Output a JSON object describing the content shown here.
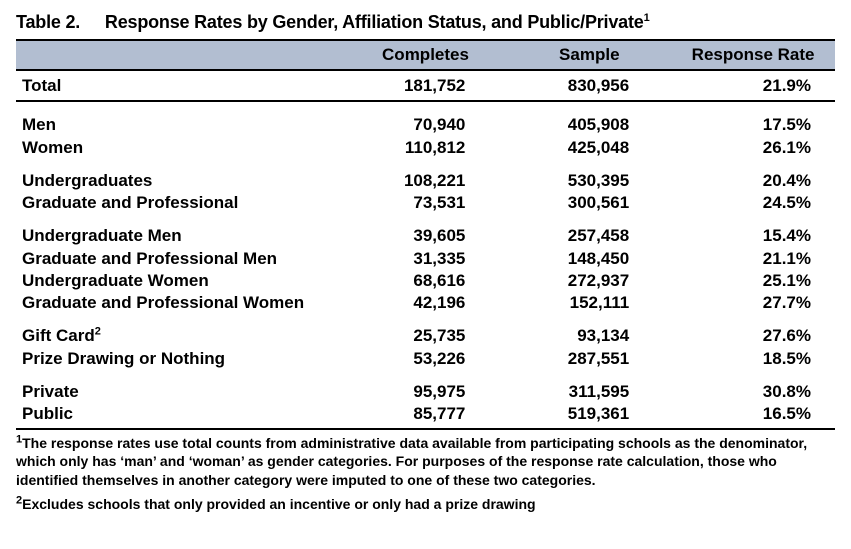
{
  "title_prefix": "Table 2.",
  "title_text": "Response Rates by Gender, Affiliation Status, and Public/Private",
  "title_sup": "1",
  "columns": [
    "",
    "Completes",
    "Sample",
    "Response Rate"
  ],
  "column_styles": {
    "header_bg": "#b2bed1",
    "border_color": "#000000",
    "font_family": "Arial",
    "header_fontsize_pt": 13,
    "body_fontsize_pt": 13,
    "footnote_fontsize_pt": 10.5
  },
  "groups": [
    {
      "kind": "total",
      "rows": [
        {
          "label": "Total",
          "completes": "181,752",
          "sample": "830,956",
          "rate": "21.9%"
        }
      ]
    },
    {
      "kind": "group",
      "rows": [
        {
          "label": "Men",
          "completes": "70,940",
          "sample": "405,908",
          "rate": "17.5%"
        },
        {
          "label": "Women",
          "completes": "110,812",
          "sample": "425,048",
          "rate": "26.1%"
        }
      ]
    },
    {
      "kind": "group",
      "rows": [
        {
          "label": "Undergraduates",
          "completes": "108,221",
          "sample": "530,395",
          "rate": "20.4%"
        },
        {
          "label": "Graduate and Professional",
          "completes": "73,531",
          "sample": "300,561",
          "rate": "24.5%"
        }
      ]
    },
    {
      "kind": "group",
      "rows": [
        {
          "label": "Undergraduate Men",
          "completes": "39,605",
          "sample": "257,458",
          "rate": "15.4%"
        },
        {
          "label": "Graduate and Professional Men",
          "completes": "31,335",
          "sample": "148,450",
          "rate": "21.1%"
        },
        {
          "label": "Undergraduate Women",
          "completes": "68,616",
          "sample": "272,937",
          "rate": "25.1%"
        },
        {
          "label": "Graduate and Professional Women",
          "completes": "42,196",
          "sample": "152,111",
          "rate": "27.7%"
        }
      ]
    },
    {
      "kind": "group",
      "rows": [
        {
          "label": "Gift Card",
          "label_sup": "2",
          "completes": "25,735",
          "sample": "93,134",
          "rate": "27.6%"
        },
        {
          "label": "Prize Drawing or Nothing",
          "completes": "53,226",
          "sample": "287,551",
          "rate": "18.5%"
        }
      ]
    },
    {
      "kind": "final",
      "rows": [
        {
          "label": "Private",
          "completes": "95,975",
          "sample": "311,595",
          "rate": "30.8%"
        },
        {
          "label": "Public",
          "completes": "85,777",
          "sample": "519,361",
          "rate": "16.5%"
        }
      ]
    }
  ],
  "footnotes": [
    {
      "marker": "1",
      "text": "The response rates use total counts from administrative data available from participating schools as the denominator, which only has ‘man’ and ‘woman’ as gender categories. For purposes of the response rate calculation, those who identified themselves in another category were imputed to one of these two categories."
    },
    {
      "marker": "2",
      "text": "Excludes schools that only provided an incentive or only had a prize drawing"
    }
  ]
}
